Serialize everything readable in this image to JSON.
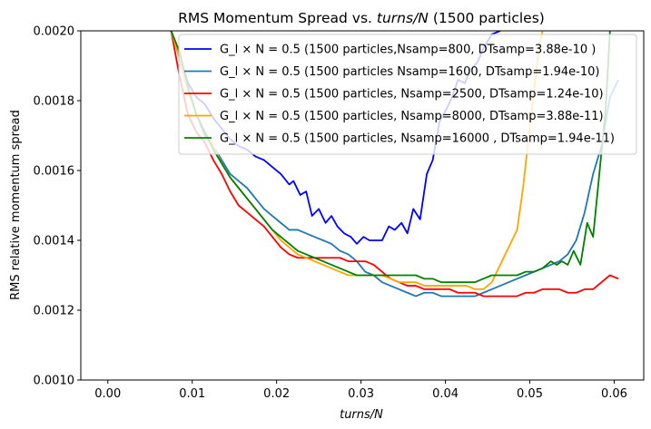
{
  "chart_data": {
    "type": "line",
    "title_parts": [
      {
        "text": "RMS Momentum Spread vs. ",
        "style": "normal"
      },
      {
        "text": "turns/N",
        "style": "italic"
      },
      {
        "text": " (1500 particles)",
        "style": "normal"
      }
    ],
    "xlabel": "turns/N",
    "ylabel": "RMS relative momentum spread",
    "xlim": [
      -0.0032,
      0.0635
    ],
    "ylim": [
      0.001,
      0.002
    ],
    "xticks": [
      0.0,
      0.01,
      0.02,
      0.03,
      0.04,
      0.05,
      0.06
    ],
    "xtick_labels": [
      "0.00",
      "0.01",
      "0.02",
      "0.03",
      "0.04",
      "0.05",
      "0.06"
    ],
    "yticks": [
      0.001,
      0.0012,
      0.0014,
      0.0016,
      0.0018,
      0.002
    ],
    "ytick_labels": [
      "0.0010",
      "0.0012",
      "0.0014",
      "0.0016",
      "0.0018",
      "0.0020"
    ],
    "legend_position": "top-right",
    "series": [
      {
        "name": "G_l × N = 0.5 (1500 particles,Nsamp=800, DTsamp=3.88e-10 )",
        "color": "#0000ff",
        "x": [
          0.0075,
          0.0085,
          0.0095,
          0.0105,
          0.0115,
          0.0125,
          0.0135,
          0.0145,
          0.0155,
          0.0165,
          0.0175,
          0.0185,
          0.0195,
          0.0205,
          0.0215,
          0.022,
          0.0228,
          0.0235,
          0.0242,
          0.025,
          0.0258,
          0.0265,
          0.0272,
          0.028,
          0.0288,
          0.0295,
          0.0303,
          0.031,
          0.0318,
          0.0325,
          0.0333,
          0.034,
          0.0348,
          0.0355,
          0.0362,
          0.037,
          0.0378,
          0.0385,
          0.0393,
          0.04,
          0.0408,
          0.0415,
          0.0423,
          0.043,
          0.0438,
          0.0445,
          0.0455,
          0.0465
        ],
        "y": [
          0.002,
          0.00193,
          0.00185,
          0.00181,
          0.00179,
          0.00175,
          0.00172,
          0.00169,
          0.00167,
          0.00166,
          0.00164,
          0.00163,
          0.00161,
          0.00159,
          0.00156,
          0.00157,
          0.00153,
          0.00154,
          0.00147,
          0.00149,
          0.00145,
          0.00147,
          0.00144,
          0.00142,
          0.00141,
          0.00139,
          0.00141,
          0.0014,
          0.0014,
          0.0014,
          0.00144,
          0.00143,
          0.00145,
          0.00142,
          0.00149,
          0.00146,
          0.00159,
          0.00163,
          0.00174,
          0.00177,
          0.00181,
          0.00186,
          0.00185,
          0.00189,
          0.00191,
          0.00195,
          0.00199,
          0.002
        ]
      },
      {
        "name": "G_l × N = 0.5  (1500 particles Nsamp=1600, DTsamp=1.94e-10)",
        "color": "#1f77b4",
        "x": [
          0.0075,
          0.0085,
          0.0095,
          0.0105,
          0.0115,
          0.0125,
          0.0135,
          0.0145,
          0.0155,
          0.0165,
          0.0175,
          0.0185,
          0.0195,
          0.0205,
          0.0215,
          0.0225,
          0.0235,
          0.0245,
          0.0255,
          0.0265,
          0.0275,
          0.0285,
          0.0295,
          0.0305,
          0.0315,
          0.0325,
          0.0335,
          0.0345,
          0.0355,
          0.0365,
          0.0375,
          0.0385,
          0.0395,
          0.0405,
          0.0415,
          0.0425,
          0.0435,
          0.0445,
          0.0455,
          0.0465,
          0.0475,
          0.0485,
          0.0495,
          0.0505,
          0.0515,
          0.0525,
          0.0535,
          0.0545,
          0.0555,
          0.0565,
          0.0575,
          0.0585,
          0.0595,
          0.0605
        ],
        "y": [
          0.002,
          0.00193,
          0.00183,
          0.00176,
          0.0017,
          0.00167,
          0.00163,
          0.00159,
          0.00157,
          0.00155,
          0.00152,
          0.00149,
          0.00147,
          0.00145,
          0.00143,
          0.00143,
          0.00142,
          0.00141,
          0.0014,
          0.00139,
          0.00137,
          0.00136,
          0.00134,
          0.00131,
          0.0013,
          0.00128,
          0.00127,
          0.00126,
          0.00125,
          0.00124,
          0.00125,
          0.00125,
          0.00124,
          0.00124,
          0.00124,
          0.00124,
          0.00124,
          0.00125,
          0.00126,
          0.00127,
          0.00128,
          0.00129,
          0.0013,
          0.00131,
          0.00132,
          0.00133,
          0.00134,
          0.00136,
          0.0014,
          0.00148,
          0.00159,
          0.00167,
          0.00181,
          0.00186
        ]
      },
      {
        "name": "G_l × N = 0.5 (1500 particles, Nsamp=2500, DTsamp=1.24e-10)",
        "color": "#ff0000",
        "x": [
          0.0075,
          0.0085,
          0.0095,
          0.0105,
          0.0115,
          0.0125,
          0.0135,
          0.0145,
          0.0155,
          0.0165,
          0.0175,
          0.0185,
          0.0195,
          0.0205,
          0.0215,
          0.0225,
          0.0235,
          0.0245,
          0.0255,
          0.0265,
          0.0275,
          0.0285,
          0.0295,
          0.0305,
          0.0315,
          0.0325,
          0.0335,
          0.0345,
          0.0355,
          0.0365,
          0.0375,
          0.0385,
          0.0395,
          0.0405,
          0.0415,
          0.0425,
          0.0435,
          0.0445,
          0.0455,
          0.0465,
          0.0475,
          0.0485,
          0.0495,
          0.0505,
          0.0515,
          0.0525,
          0.0535,
          0.0545,
          0.0555,
          0.0565,
          0.0575,
          0.0585,
          0.0595,
          0.0605
        ],
        "y": [
          0.002,
          0.00187,
          0.00176,
          0.00171,
          0.00168,
          0.00163,
          0.00159,
          0.00154,
          0.0015,
          0.00148,
          0.00146,
          0.00144,
          0.00141,
          0.00138,
          0.00136,
          0.00135,
          0.00135,
          0.00135,
          0.00135,
          0.00135,
          0.00135,
          0.00134,
          0.00134,
          0.00134,
          0.00133,
          0.00131,
          0.00129,
          0.00128,
          0.00127,
          0.00127,
          0.00126,
          0.00126,
          0.00126,
          0.00126,
          0.00125,
          0.00125,
          0.00125,
          0.00124,
          0.00124,
          0.00124,
          0.00124,
          0.00124,
          0.00125,
          0.00125,
          0.00126,
          0.00126,
          0.00126,
          0.00125,
          0.00125,
          0.00126,
          0.00126,
          0.00128,
          0.0013,
          0.00129
        ]
      },
      {
        "name": "G_l × N = 0.5 (1500 particles, Nsamp=8000, DTsamp=3.88e-11)",
        "color": "#ffa500",
        "x": [
          0.0075,
          0.0085,
          0.0095,
          0.0105,
          0.0115,
          0.0125,
          0.0135,
          0.0145,
          0.0155,
          0.0165,
          0.0175,
          0.0185,
          0.0195,
          0.0205,
          0.0215,
          0.0225,
          0.0235,
          0.0245,
          0.0255,
          0.0265,
          0.0275,
          0.0285,
          0.0295,
          0.0305,
          0.0315,
          0.0325,
          0.0335,
          0.0345,
          0.0355,
          0.0365,
          0.0375,
          0.0385,
          0.0395,
          0.0405,
          0.0415,
          0.0425,
          0.0435,
          0.0445,
          0.0455,
          0.0465,
          0.0475,
          0.0485,
          0.0492,
          0.0498,
          0.0505,
          0.051,
          0.0515
        ],
        "y": [
          0.002,
          0.00192,
          0.00183,
          0.00176,
          0.00171,
          0.00167,
          0.00162,
          0.00158,
          0.00155,
          0.00152,
          0.00149,
          0.00146,
          0.00143,
          0.0014,
          0.00138,
          0.00136,
          0.00135,
          0.00134,
          0.00133,
          0.00132,
          0.00131,
          0.0013,
          0.0013,
          0.0013,
          0.0013,
          0.0013,
          0.00129,
          0.00128,
          0.00128,
          0.00128,
          0.00127,
          0.00127,
          0.00127,
          0.00127,
          0.00127,
          0.00127,
          0.00126,
          0.00126,
          0.00128,
          0.00133,
          0.00138,
          0.00143,
          0.00155,
          0.00168,
          0.00183,
          0.00193,
          0.002
        ]
      },
      {
        "name": "G_l × N = 0.5 (1500 particles, Nsamp=16000 , DTsamp=1.94e-11)",
        "color": "#008000",
        "x": [
          0.0075,
          0.0085,
          0.0095,
          0.0105,
          0.0115,
          0.0125,
          0.0135,
          0.0145,
          0.0155,
          0.0165,
          0.0175,
          0.0185,
          0.0195,
          0.0205,
          0.0215,
          0.0225,
          0.0235,
          0.0245,
          0.0255,
          0.0265,
          0.0275,
          0.0285,
          0.0295,
          0.0305,
          0.0315,
          0.0325,
          0.0335,
          0.0345,
          0.0355,
          0.0365,
          0.0375,
          0.0385,
          0.0395,
          0.0405,
          0.0415,
          0.0425,
          0.0435,
          0.0445,
          0.0455,
          0.0465,
          0.0475,
          0.0485,
          0.0495,
          0.0505,
          0.0515,
          0.0525,
          0.0532,
          0.0538,
          0.0545,
          0.0552,
          0.056,
          0.0568,
          0.0575,
          0.0582,
          0.059,
          0.0595
        ],
        "y": [
          0.002,
          0.00194,
          0.00184,
          0.00176,
          0.00171,
          0.00166,
          0.00162,
          0.00158,
          0.00155,
          0.00152,
          0.00149,
          0.00146,
          0.00143,
          0.00141,
          0.00139,
          0.00137,
          0.00136,
          0.00135,
          0.00134,
          0.00133,
          0.00132,
          0.00131,
          0.0013,
          0.0013,
          0.0013,
          0.0013,
          0.0013,
          0.0013,
          0.0013,
          0.0013,
          0.00129,
          0.00129,
          0.00128,
          0.00128,
          0.00128,
          0.00128,
          0.00128,
          0.00129,
          0.0013,
          0.0013,
          0.0013,
          0.0013,
          0.00131,
          0.00131,
          0.00132,
          0.00134,
          0.00133,
          0.00134,
          0.00133,
          0.00137,
          0.00133,
          0.00145,
          0.00141,
          0.00158,
          0.00178,
          0.002
        ]
      }
    ]
  }
}
